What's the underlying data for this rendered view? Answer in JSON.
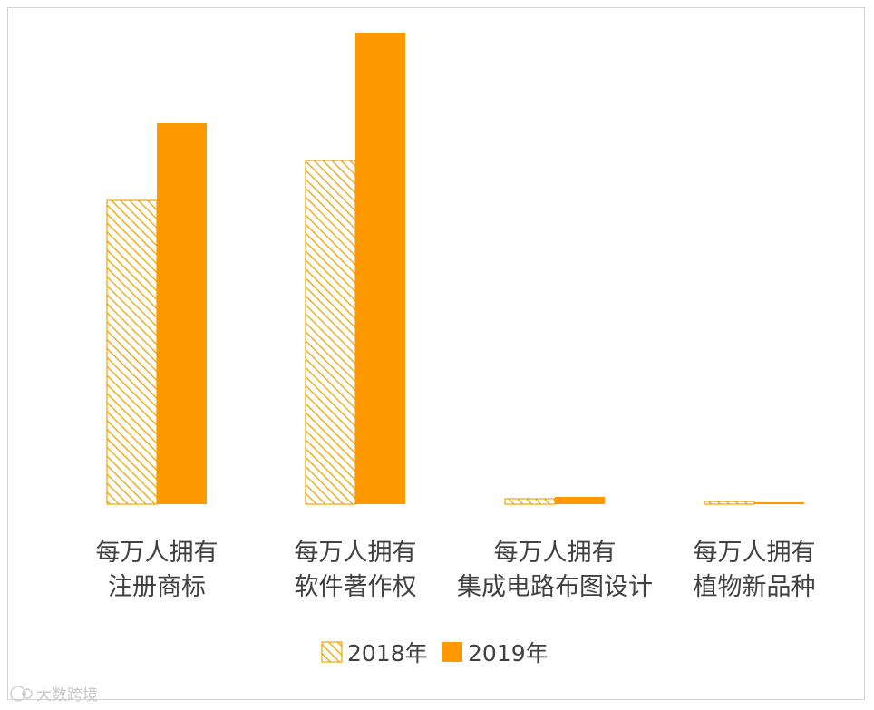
{
  "chart_data": {
    "type": "bar",
    "categories": [
      [
        "每万人拥有",
        "注册商标"
      ],
      [
        "每万人拥有",
        "软件著作权"
      ],
      [
        "每万人拥有",
        "集成电路布图设计"
      ],
      [
        "每万人拥有",
        "植物新品种"
      ]
    ],
    "series": [
      {
        "name": "2018年",
        "values": [
          33.5,
          37.9,
          0.6,
          0.3
        ],
        "fill": "hatch",
        "color": "#F0A400"
      },
      {
        "name": "2019年",
        "values": [
          42.0,
          52.0,
          0.8,
          0.2
        ],
        "fill": "solid",
        "color": "#FF9900"
      }
    ],
    "ylim": [
      0,
      52
    ],
    "grid": false,
    "legend": "bottom-center"
  },
  "watermark": {
    "text": "大数跨境"
  }
}
